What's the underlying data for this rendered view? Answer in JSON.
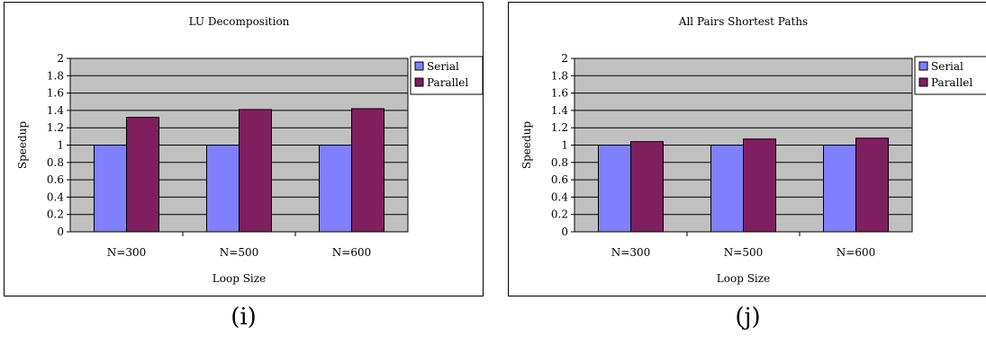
{
  "colors": {
    "serial": "#8080FF",
    "parallel": "#7F1F5F",
    "plot_bg": "#C0C0C0",
    "grid": "#000000"
  },
  "chart_data": [
    {
      "type": "bar",
      "title": "LU Decomposition",
      "xlabel": "Loop Size",
      "ylabel": "Speedup",
      "categories": [
        "N=300",
        "N=500",
        "N=600"
      ],
      "ylim": [
        0,
        2
      ],
      "yticks": [
        "0",
        "0.2",
        "0.4",
        "0.6",
        "0.8",
        "1",
        "1.2",
        "1.4",
        "1.6",
        "1.8",
        "2"
      ],
      "series": [
        {
          "name": "Serial",
          "values": [
            1,
            1,
            1
          ]
        },
        {
          "name": "Parallel",
          "values": [
            1.32,
            1.41,
            1.42
          ]
        }
      ],
      "grid": true,
      "legend": "right",
      "caption": "(i)"
    },
    {
      "type": "bar",
      "title": "All Pairs Shortest Paths",
      "xlabel": "Loop Size",
      "ylabel": "Speedup",
      "categories": [
        "N=300",
        "N=500",
        "N=600"
      ],
      "ylim": [
        0,
        2
      ],
      "yticks": [
        "0",
        "0.2",
        "0.4",
        "0.6",
        "0.8",
        "1",
        "1.2",
        "1.4",
        "1.6",
        "1.8",
        "2"
      ],
      "series": [
        {
          "name": "Serial",
          "values": [
            1,
            1,
            1
          ]
        },
        {
          "name": "Parallel",
          "values": [
            1.04,
            1.07,
            1.08
          ]
        }
      ],
      "grid": true,
      "legend": "right",
      "caption": "(j)"
    }
  ]
}
